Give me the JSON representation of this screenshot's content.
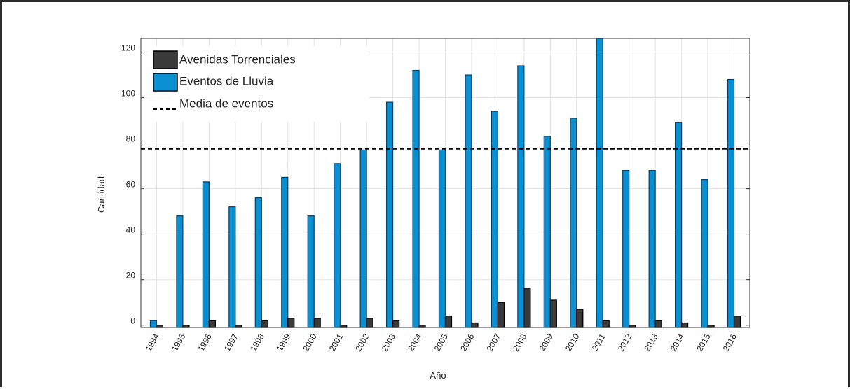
{
  "chart_data": {
    "type": "bar",
    "title": "",
    "xlabel": "Año",
    "ylabel": "Cantidad",
    "ylim": [
      -1,
      126
    ],
    "yticks": [
      0,
      20,
      40,
      60,
      80,
      100,
      120
    ],
    "grid": true,
    "legend_position": "top-left",
    "categories": [
      "1994",
      "1995",
      "1996",
      "1997",
      "1998",
      "1999",
      "2000",
      "2001",
      "2002",
      "2003",
      "2004",
      "2005",
      "2006",
      "2007",
      "2008",
      "2009",
      "2010",
      "2011",
      "2012",
      "2013",
      "2014",
      "2015",
      "2016"
    ],
    "series": [
      {
        "name": "Avenidas Torrenciales",
        "color": "#3a3a3a",
        "values": [
          0,
          0,
          2,
          0,
          2,
          3,
          3,
          0,
          3,
          2,
          0,
          4,
          1,
          10,
          16,
          11,
          7,
          2,
          0,
          2,
          1,
          0,
          4
        ]
      },
      {
        "name": "Eventos de Lluvia",
        "color": "#0a8fd0",
        "values": [
          2,
          48,
          63,
          52,
          56,
          65,
          48,
          71,
          77,
          98,
          112,
          77,
          110,
          94,
          114,
          83,
          91,
          126,
          68,
          68,
          89,
          64,
          108
        ]
      }
    ],
    "mean_line": {
      "name": "Media de eventos",
      "value": 77.5,
      "style": "dashed",
      "color": "#000000"
    }
  }
}
